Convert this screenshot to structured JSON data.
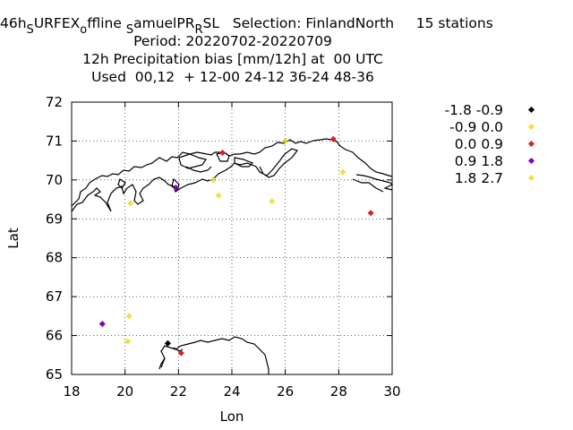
{
  "title": {
    "line1_parts": [
      "46h",
      "S",
      "URFEX",
      "o",
      "ffline ",
      "S",
      "amuelPR",
      "R",
      "SL   Selection: FinlandNorth     15 stations"
    ],
    "line2": "Period: 20220702-20220709",
    "line3": "12h Precipitation bias [mm/12h] at  00 UTC",
    "line4": "Used  00,12  + 12-00 24-12 36-24 48-36"
  },
  "chart_data": {
    "type": "scatter",
    "xlabel": "Lon",
    "ylabel": "Lat",
    "xlim": [
      18,
      30
    ],
    "ylim": [
      65,
      72
    ],
    "xticks": [
      "18",
      "20",
      "22",
      "24",
      "26",
      "28",
      "30"
    ],
    "yticks": [
      "65",
      "66",
      "67",
      "68",
      "69",
      "70",
      "71",
      "72"
    ],
    "legend_position": "right",
    "legend": [
      {
        "label": "-1.8 -0.9",
        "color": "#000000"
      },
      {
        "label": "-0.9 0.0",
        "color": "#f0e040"
      },
      {
        "label": "0.0 0.9",
        "color": "#e02020"
      },
      {
        "label": "0.9 1.8",
        "color": "#8000c0"
      },
      {
        "label": "1.8 2.7",
        "color": "#f0e040"
      }
    ],
    "points": [
      {
        "lon": 21.6,
        "lat": 65.8,
        "class": 0
      },
      {
        "lon": 22.1,
        "lat": 65.55,
        "class": 2
      },
      {
        "lon": 20.15,
        "lat": 66.5,
        "class": 1
      },
      {
        "lon": 20.1,
        "lat": 65.85,
        "class": 1
      },
      {
        "lon": 19.15,
        "lat": 66.3,
        "class": 3
      },
      {
        "lon": 20.2,
        "lat": 69.4,
        "class": 1
      },
      {
        "lon": 21.9,
        "lat": 69.8,
        "class": 3
      },
      {
        "lon": 23.3,
        "lat": 70.0,
        "class": 1
      },
      {
        "lon": 23.5,
        "lat": 69.6,
        "class": 1
      },
      {
        "lon": 23.65,
        "lat": 70.7,
        "class": 2
      },
      {
        "lon": 25.5,
        "lat": 69.45,
        "class": 1
      },
      {
        "lon": 26.0,
        "lat": 71.0,
        "class": 1
      },
      {
        "lon": 27.8,
        "lat": 71.05,
        "class": 2
      },
      {
        "lon": 28.15,
        "lat": 70.2,
        "class": 1
      },
      {
        "lon": 29.2,
        "lat": 69.15,
        "class": 2
      }
    ]
  }
}
